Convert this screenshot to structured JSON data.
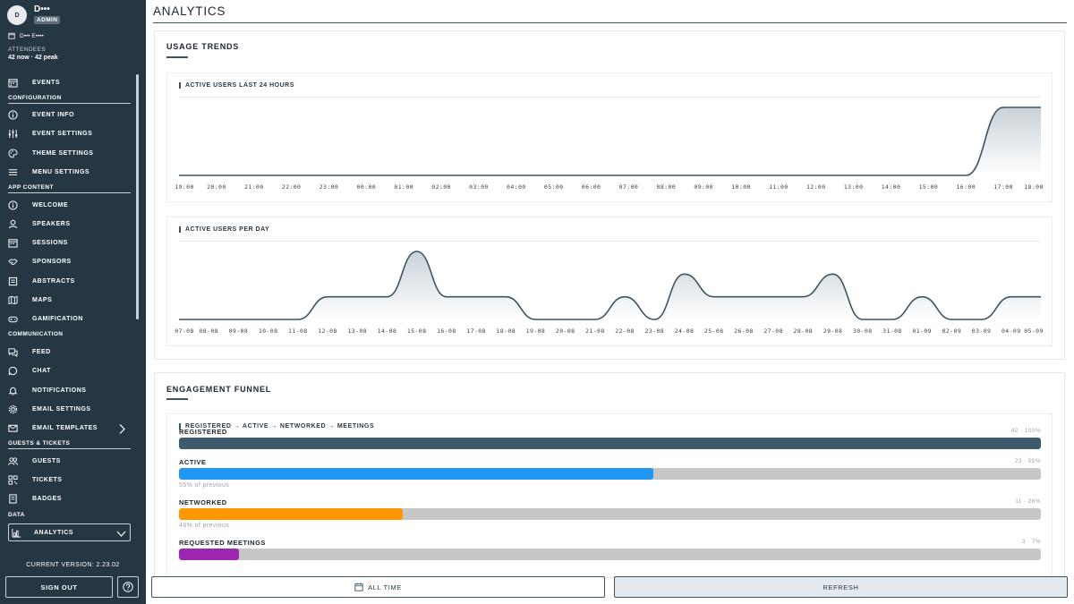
{
  "user": {
    "name": "D•••",
    "initial": "D",
    "role": "ADMIN",
    "org": "D••• E••••"
  },
  "attendees": {
    "label": "ATTENDEES",
    "value": "42 now · 42 peak"
  },
  "nav": {
    "events": "EVENTS",
    "sections": {
      "configuration": "CONFIGURATION",
      "app_content": "APP CONTENT",
      "communication": "COMMUNICATION",
      "guests_tickets": "GUESTS & TICKETS",
      "data": "DATA"
    },
    "items": {
      "event_info": "EVENT INFO",
      "event_settings": "EVENT SETTINGS",
      "theme_settings": "THEME SETTINGS",
      "menu_settings": "MENU SETTINGS",
      "welcome": "WELCOME",
      "speakers": "SPEAKERS",
      "sessions": "SESSIONS",
      "sponsors": "SPONSORS",
      "abstracts": "ABSTRACTS",
      "maps": "MAPS",
      "gamification": "GAMIFICATION",
      "feed": "FEED",
      "chat": "CHAT",
      "notifications": "NOTIFICATIONS",
      "email_settings": "EMAIL SETTINGS",
      "email_templates": "EMAIL TEMPLATES",
      "guests": "GUESTS",
      "tickets": "TICKETS",
      "badges": "BADGES",
      "analytics": "ANALYTICS"
    }
  },
  "version": "CURRENT VERSION: 2.23.02",
  "sign_out": "SIGN OUT",
  "page_title": "ANALYTICS",
  "usage": {
    "title": "USAGE TRENDS",
    "chart1_title": "ACTIVE USERS LAST 24 HOURS",
    "chart2_title": "ACTIVE USERS PER DAY"
  },
  "funnel": {
    "title": "ENGAGEMENT FUNNEL",
    "subtitle": "REGISTERED → ACTIVE → NETWORKED → MEETINGS",
    "stages": [
      {
        "name": "REGISTERED",
        "value": "42 · 100%",
        "fraction": 1.0,
        "color": "#3c5a6b",
        "note": ""
      },
      {
        "name": "ACTIVE",
        "value": "23 · 55%",
        "fraction": 0.55,
        "color": "#2196f3",
        "note": "55% of previous"
      },
      {
        "name": "NETWORKED",
        "value": "11 · 26%",
        "fraction": 0.26,
        "color": "#ff9800",
        "note": "48% of previous"
      },
      {
        "name": "REQUESTED MEETINGS",
        "value": "3 · 7%",
        "fraction": 0.07,
        "color": "#9c27b0",
        "note": ""
      }
    ]
  },
  "buttons": {
    "range": "ALL TIME",
    "refresh": "REFRESH"
  },
  "colors": {
    "sidebar": "#263744",
    "accent": "#3c5566",
    "line": "#3c5566"
  },
  "chart_data": [
    {
      "type": "area",
      "title": "ACTIVE USERS LAST 24 HOURS",
      "x": [
        "19:00",
        "20:00",
        "21:00",
        "22:00",
        "23:00",
        "00:00",
        "01:00",
        "02:00",
        "03:00",
        "04:00",
        "05:00",
        "06:00",
        "07:00",
        "08:00",
        "09:00",
        "10:00",
        "11:00",
        "12:00",
        "13:00",
        "14:00",
        "15:00",
        "16:00",
        "17:00",
        "18:00"
      ],
      "values": [
        0,
        0,
        0,
        0,
        0,
        0,
        0,
        0,
        0,
        0,
        0,
        0,
        0,
        0,
        0,
        0,
        0,
        0,
        0,
        0,
        0,
        0,
        1,
        1
      ],
      "grid": false
    },
    {
      "type": "area",
      "title": "ACTIVE USERS PER DAY",
      "x": [
        "07-08",
        "08-08",
        "09-08",
        "10-08",
        "11-08",
        "12-08",
        "13-08",
        "14-08",
        "15-08",
        "16-08",
        "17-08",
        "18-08",
        "19-08",
        "20-08",
        "21-08",
        "22-08",
        "23-08",
        "24-08",
        "25-08",
        "26-08",
        "27-08",
        "28-08",
        "29-08",
        "30-08",
        "31-08",
        "01-09",
        "02-09",
        "03-09",
        "04-09",
        "05-09"
      ],
      "values": [
        0,
        0,
        0,
        0,
        0,
        1,
        1,
        1,
        3,
        1,
        1,
        1,
        0,
        0,
        0,
        1,
        0,
        2,
        1,
        1,
        1,
        1,
        2,
        0,
        0,
        1,
        0,
        0,
        1,
        1
      ],
      "grid": false
    }
  ]
}
